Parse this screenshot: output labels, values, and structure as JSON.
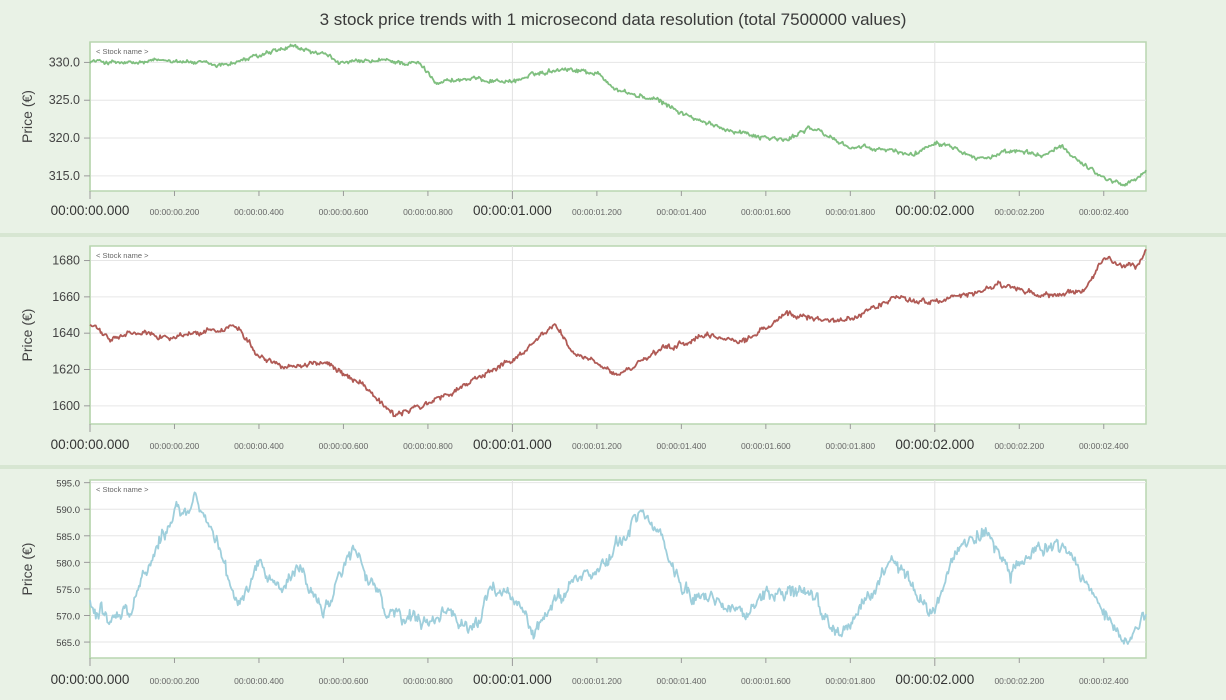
{
  "title": "3 stock price trends with 1 microsecond data resolution (total 7500000 values)",
  "chart_data": [
    {
      "type": "line",
      "ylabel": "Price (€)",
      "series": [
        {
          "name": "< Stock name >",
          "color": "#7fbf7f"
        }
      ],
      "ylim": [
        313,
        332.7
      ],
      "yticks": [
        315,
        320,
        325,
        330
      ],
      "ytick_labels": [
        "315.0",
        "320.0",
        "325.0",
        "330.0"
      ],
      "xlim": [
        0,
        2.5
      ],
      "xticks": [
        0,
        0.2,
        0.4,
        0.6,
        0.8,
        1.0,
        1.2,
        1.4,
        1.6,
        1.8,
        2.0,
        2.2,
        2.4
      ],
      "xtick_labels": [
        "00:00:00.000",
        "00:00:00.200",
        "00:00:00.400",
        "00:00:00.600",
        "00:00:00.800",
        "00:00:01.000",
        "00:00:01.200",
        "00:00:01.400",
        "00:00:01.600",
        "00:00:01.800",
        "00:00:02.000",
        "00:00:02.200",
        "00:00:02.400"
      ],
      "noise": 0.35,
      "trend": [
        [
          0,
          330.2
        ],
        [
          0.1,
          329.8
        ],
        [
          0.2,
          330.4
        ],
        [
          0.3,
          329.5
        ],
        [
          0.4,
          330.8
        ],
        [
          0.48,
          332.0
        ],
        [
          0.55,
          331.0
        ],
        [
          0.6,
          329.9
        ],
        [
          0.7,
          330.2
        ],
        [
          0.78,
          329.8
        ],
        [
          0.82,
          327.5
        ],
        [
          0.9,
          327.8
        ],
        [
          1.0,
          327.5
        ],
        [
          1.08,
          328.8
        ],
        [
          1.12,
          329.3
        ],
        [
          1.2,
          328.6
        ],
        [
          1.25,
          326.3
        ],
        [
          1.35,
          324.8
        ],
        [
          1.45,
          322.0
        ],
        [
          1.55,
          320.7
        ],
        [
          1.65,
          319.6
        ],
        [
          1.7,
          321.5
        ],
        [
          1.8,
          318.8
        ],
        [
          1.9,
          318.3
        ],
        [
          1.95,
          317.8
        ],
        [
          2.0,
          319.6
        ],
        [
          2.05,
          319.0
        ],
        [
          2.1,
          317.3
        ],
        [
          2.2,
          318.2
        ],
        [
          2.25,
          317.6
        ],
        [
          2.3,
          318.8
        ],
        [
          2.35,
          316.7
        ],
        [
          2.4,
          314.8
        ],
        [
          2.45,
          313.8
        ],
        [
          2.5,
          315.5
        ]
      ]
    },
    {
      "type": "line",
      "ylabel": "Price (€)",
      "series": [
        {
          "name": "< Stock name >",
          "color": "#b05a55"
        }
      ],
      "ylim": [
        1590,
        1688
      ],
      "yticks": [
        1600,
        1620,
        1640,
        1660,
        1680
      ],
      "ytick_labels": [
        "1600",
        "1620",
        "1640",
        "1660",
        "1680"
      ],
      "xlim": [
        0,
        2.5
      ],
      "xticks": [
        0,
        0.2,
        0.4,
        0.6,
        0.8,
        1.0,
        1.2,
        1.4,
        1.6,
        1.8,
        2.0,
        2.2,
        2.4
      ],
      "xtick_labels": [
        "00:00:00.000",
        "00:00:00.200",
        "00:00:00.400",
        "00:00:00.600",
        "00:00:00.800",
        "00:00:01.000",
        "00:00:01.200",
        "00:00:01.400",
        "00:00:01.600",
        "00:00:01.800",
        "00:00:02.000",
        "00:00:02.200",
        "00:00:02.400"
      ],
      "noise": 1.8,
      "trend": [
        [
          0,
          1645
        ],
        [
          0.05,
          1636
        ],
        [
          0.1,
          1640
        ],
        [
          0.2,
          1638
        ],
        [
          0.35,
          1644
        ],
        [
          0.4,
          1628
        ],
        [
          0.45,
          1622
        ],
        [
          0.55,
          1624
        ],
        [
          0.65,
          1612
        ],
        [
          0.72,
          1594
        ],
        [
          0.78,
          1600
        ],
        [
          0.85,
          1606
        ],
        [
          0.95,
          1620
        ],
        [
          1.0,
          1625
        ],
        [
          1.1,
          1645
        ],
        [
          1.15,
          1628
        ],
        [
          1.25,
          1617
        ],
        [
          1.35,
          1630
        ],
        [
          1.45,
          1638
        ],
        [
          1.55,
          1636
        ],
        [
          1.65,
          1650
        ],
        [
          1.8,
          1647
        ],
        [
          1.9,
          1660
        ],
        [
          2.0,
          1657
        ],
        [
          2.1,
          1662
        ],
        [
          2.15,
          1667
        ],
        [
          2.25,
          1660
        ],
        [
          2.35,
          1662
        ],
        [
          2.4,
          1681
        ],
        [
          2.48,
          1676
        ],
        [
          2.5,
          1686
        ]
      ]
    },
    {
      "type": "line",
      "ylabel": "Price (€)",
      "series": [
        {
          "name": "< Stock name >",
          "color": "#9fcfdc"
        }
      ],
      "ylim": [
        562,
        595.5
      ],
      "yticks": [
        565,
        570,
        575,
        580,
        585,
        590,
        595
      ],
      "ytick_labels": [
        "565.0",
        "570.0",
        "575.0",
        "580.0",
        "585.0",
        "590.0",
        "595.0"
      ],
      "xlim": [
        0,
        2.5
      ],
      "xticks": [
        0,
        0.2,
        0.4,
        0.6,
        0.8,
        1.0,
        1.2,
        1.4,
        1.6,
        1.8,
        2.0,
        2.2,
        2.4
      ],
      "xtick_labels": [
        "00:00:00.000",
        "00:00:00.200",
        "00:00:00.400",
        "00:00:00.600",
        "00:00:00.800",
        "00:00:01.000",
        "00:00:01.200",
        "00:00:01.400",
        "00:00:01.600",
        "00:00:01.800",
        "00:00:02.000",
        "00:00:02.200",
        "00:00:02.400"
      ],
      "noise": 1.6,
      "trend": [
        [
          0,
          572
        ],
        [
          0.05,
          570
        ],
        [
          0.1,
          572
        ],
        [
          0.15,
          582
        ],
        [
          0.2,
          589
        ],
        [
          0.25,
          592
        ],
        [
          0.3,
          583
        ],
        [
          0.35,
          572
        ],
        [
          0.4,
          580
        ],
        [
          0.45,
          575
        ],
        [
          0.5,
          579
        ],
        [
          0.55,
          570
        ],
        [
          0.62,
          583
        ],
        [
          0.7,
          571
        ],
        [
          0.8,
          568
        ],
        [
          0.85,
          570
        ],
        [
          0.9,
          567
        ],
        [
          0.95,
          574
        ],
        [
          1.0,
          574
        ],
        [
          1.05,
          567
        ],
        [
          1.1,
          573
        ],
        [
          1.15,
          577
        ],
        [
          1.22,
          580
        ],
        [
          1.3,
          589
        ],
        [
          1.35,
          585
        ],
        [
          1.4,
          575
        ],
        [
          1.5,
          573
        ],
        [
          1.55,
          570
        ],
        [
          1.6,
          574
        ],
        [
          1.7,
          574
        ],
        [
          1.78,
          565
        ],
        [
          1.83,
          572
        ],
        [
          1.9,
          580
        ],
        [
          1.95,
          576
        ],
        [
          2.0,
          570
        ],
        [
          2.05,
          582
        ],
        [
          2.12,
          587
        ],
        [
          2.18,
          578
        ],
        [
          2.25,
          582
        ],
        [
          2.3,
          583
        ],
        [
          2.35,
          577
        ],
        [
          2.42,
          570
        ],
        [
          2.46,
          565
        ],
        [
          2.5,
          570
        ]
      ]
    }
  ]
}
